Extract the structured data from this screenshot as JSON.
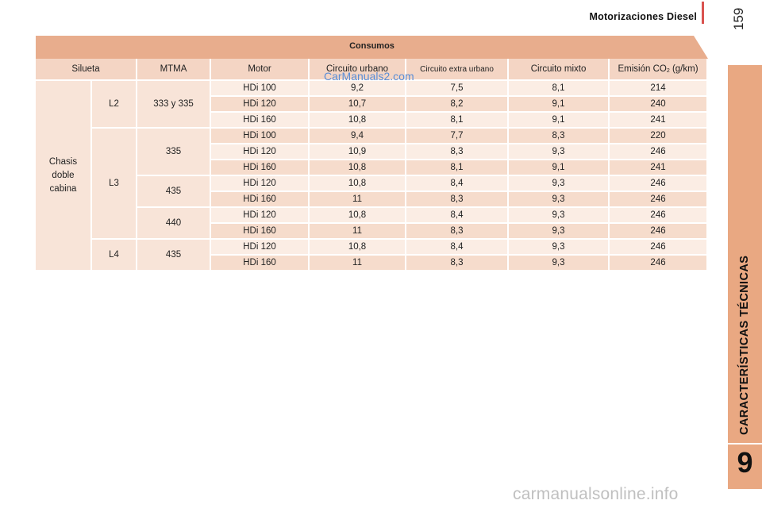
{
  "header": {
    "title": "Motorizaciones Diesel",
    "page_number": "159"
  },
  "sidebar": {
    "section_label": "CARACTERÍSTICAS TÉCNICAS",
    "chapter_number": "9"
  },
  "watermark": {
    "top": "CarManuals2.com",
    "bottom": "carmanualsonline.info"
  },
  "table": {
    "title": "Consumos",
    "columns": {
      "silueta": "Silueta",
      "mtma": "MTMA",
      "motor": "Motor",
      "urbano": "Circuito urbano",
      "extra": "Circuito extra urbano",
      "mixto": "Circuito mixto",
      "emision_prefix": "Emisión CO",
      "emision_sub": "2",
      "emision_suffix": " (g/km)"
    },
    "silueta": "Chasis doble cabina",
    "groups": {
      "l2": {
        "label": "L2",
        "mtma": "333 y 335"
      },
      "l3": {
        "label": "L3",
        "mtma_a": "335",
        "mtma_b": "435",
        "mtma_c": "440"
      },
      "l4": {
        "label": "L4",
        "mtma": "435"
      }
    },
    "rows": [
      {
        "motor": "HDi 100",
        "urbano": "9,2",
        "extra": "7,5",
        "mixto": "8,1",
        "co2": "214"
      },
      {
        "motor": "HDi 120",
        "urbano": "10,7",
        "extra": "8,2",
        "mixto": "9,1",
        "co2": "240"
      },
      {
        "motor": "HDi 160",
        "urbano": "10,8",
        "extra": "8,1",
        "mixto": "9,1",
        "co2": "241"
      },
      {
        "motor": "HDi 100",
        "urbano": "9,4",
        "extra": "7,7",
        "mixto": "8,3",
        "co2": "220"
      },
      {
        "motor": "HDi 120",
        "urbano": "10,9",
        "extra": "8,3",
        "mixto": "9,3",
        "co2": "246"
      },
      {
        "motor": "HDi 160",
        "urbano": "10,8",
        "extra": "8,1",
        "mixto": "9,1",
        "co2": "241"
      },
      {
        "motor": "HDi 120",
        "urbano": "10,8",
        "extra": "8,4",
        "mixto": "9,3",
        "co2": "246"
      },
      {
        "motor": "HDi 160",
        "urbano": "11",
        "extra": "8,3",
        "mixto": "9,3",
        "co2": "246"
      },
      {
        "motor": "HDi 120",
        "urbano": "10,8",
        "extra": "8,4",
        "mixto": "9,3",
        "co2": "246"
      },
      {
        "motor": "HDi 160",
        "urbano": "11",
        "extra": "8,3",
        "mixto": "9,3",
        "co2": "246"
      },
      {
        "motor": "HDi 120",
        "urbano": "10,8",
        "extra": "8,4",
        "mixto": "9,3",
        "co2": "246"
      },
      {
        "motor": "HDi 160",
        "urbano": "11",
        "extra": "8,3",
        "mixto": "9,3",
        "co2": "246"
      }
    ]
  }
}
